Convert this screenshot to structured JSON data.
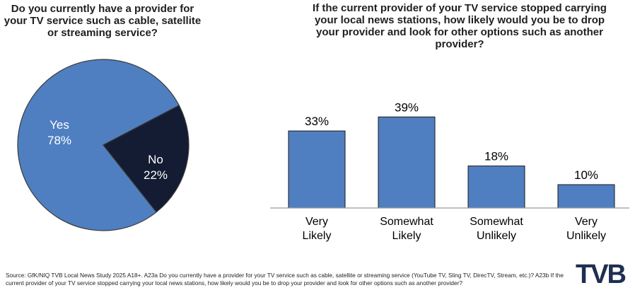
{
  "colors": {
    "blue": "#4f7fc1",
    "navy": "#141c33",
    "axis": "#9b9b9b"
  },
  "pie": {
    "title": "Do you currently have a provider for your TV service such as cable, satellite or streaming service?"
  },
  "bar": {
    "title": "If the current provider of your TV service stopped carrying your local news stations, how likely would you be to drop your provider and look for other options such as another provider?"
  },
  "chart_data": [
    {
      "type": "pie",
      "title": "Do you currently have a provider for your TV service such as cable, satellite or streaming service?",
      "slices": [
        {
          "label": "Yes",
          "value": 78,
          "value_label": "78%"
        },
        {
          "label": "No",
          "value": 22,
          "value_label": "22%"
        }
      ]
    },
    {
      "type": "bar",
      "title": "If the current provider of your TV service stopped carrying your local news stations, how likely would you be to drop your provider and look for other options such as another provider?",
      "categories": [
        [
          "Very",
          "Likely"
        ],
        [
          "Somewhat",
          "Likely"
        ],
        [
          "Somewhat",
          "Unlikely"
        ],
        [
          "Very",
          "Unlikely"
        ]
      ],
      "values": [
        33,
        39,
        18,
        10
      ],
      "value_labels": [
        "33%",
        "39%",
        "18%",
        "10%"
      ],
      "ylim": [
        0,
        45
      ]
    }
  ],
  "source": "Source: GfK/NIQ TVB Local News Study 2025 A18+. A23a Do you currently have a provider for your TV service such as cable, satellite or streaming service (YouTube TV, Sling TV, DirecTV, Stream, etc.)? A23b If the current provider of your TV service stopped carrying your local news stations, how likely would you be to drop your provider and look for other options such as another provider?",
  "logo": "TVB"
}
